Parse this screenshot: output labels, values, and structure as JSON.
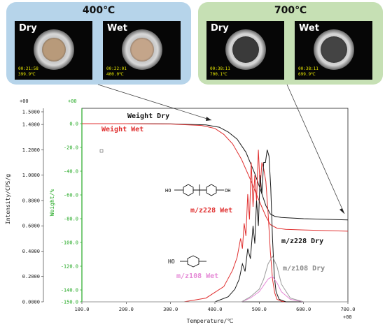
{
  "panels": [
    {
      "title": "400℃",
      "photos": [
        {
          "label": "Dry",
          "time": "00:21:58",
          "temp": "399.9℃",
          "sample_color": "#b89a7a"
        },
        {
          "label": "Wet",
          "time": "00:22:01",
          "temp": "400.0℃",
          "sample_color": "#c4a58a"
        }
      ],
      "bg": "#b6d4ea"
    },
    {
      "title": "700℃",
      "photos": [
        {
          "label": "Dry",
          "time": "00:38:11",
          "temp": "700.1℃",
          "sample_color": "#3a3a3a"
        },
        {
          "label": "Wet",
          "time": "00:38:11",
          "temp": "699.9℃",
          "sample_color": "#444444"
        }
      ],
      "bg": "#c6e0b4"
    }
  ],
  "chart_data": {
    "type": "line",
    "xlabel": "Temperature/℃",
    "ylabel_left": "Intensity/CPS/g",
    "ylabel_right": "Weight/%",
    "x_exponent": "+00",
    "yleft_exponent": "+00",
    "yright_exponent": "+00",
    "xlim": [
      100,
      700
    ],
    "yleft_lim": [
      0,
      1.5
    ],
    "yright_lim": [
      -150,
      10
    ],
    "x_ticks": [
      "100.0",
      "200.0",
      "300.0",
      "400.0",
      "500.0",
      "600.0",
      "700.0"
    ],
    "yleft_ticks": [
      "0.0000",
      "0.2000",
      "0.4000",
      "0.6000",
      "0.8000",
      "1.0000",
      "1.2000",
      "1.4000",
      "1.5000"
    ],
    "yright_ticks": [
      "0.0",
      "-20.0",
      "-40.0",
      "-60.0",
      "-80.0",
      "-100.0",
      "-120.0",
      "-140.0",
      "-150.0"
    ],
    "series": [
      {
        "name": "Weight Dry",
        "axis": "right",
        "color": "#1a1a1a",
        "x": [
          100,
          200,
          300,
          380,
          410,
          430,
          450,
          470,
          490,
          505,
          515,
          525,
          535,
          550,
          600,
          650,
          700
        ],
        "y": [
          0,
          0,
          -0.2,
          -1,
          -3,
          -7,
          -13,
          -24,
          -42,
          -58,
          -69,
          -76,
          -78,
          -79,
          -80,
          -80.5,
          -81
        ]
      },
      {
        "name": "Weight Wet",
        "axis": "right",
        "color": "#e03030",
        "x": [
          100,
          200,
          300,
          370,
          400,
          420,
          440,
          460,
          480,
          500,
          515,
          525,
          540,
          560,
          600,
          650,
          700
        ],
        "y": [
          0,
          0,
          -0.3,
          -1.5,
          -4,
          -9,
          -17,
          -30,
          -47,
          -65,
          -78,
          -85,
          -88,
          -89,
          -89.5,
          -90,
          -90.5
        ]
      },
      {
        "name": "m/z228 Wet",
        "axis": "left",
        "color": "#e03030",
        "x": [
          100,
          330,
          380,
          420,
          440,
          450,
          458,
          462,
          466,
          470,
          474,
          478,
          482,
          486,
          490,
          494,
          498,
          502,
          506,
          510,
          515,
          520,
          525,
          530,
          535,
          540,
          550,
          560,
          600,
          700
        ],
        "y": [
          0,
          0,
          0.03,
          0.12,
          0.25,
          0.35,
          0.5,
          0.42,
          0.62,
          0.52,
          0.85,
          0.65,
          1.1,
          0.75,
          1.0,
          0.8,
          1.2,
          0.9,
          1.1,
          1.05,
          0.95,
          0.7,
          0.4,
          0.18,
          0.07,
          0.02,
          0.005,
          0,
          0,
          0
        ]
      },
      {
        "name": "m/z228 Dry",
        "axis": "left",
        "color": "#1a1a1a",
        "x": [
          100,
          400,
          430,
          445,
          455,
          462,
          468,
          474,
          480,
          486,
          490,
          494,
          498,
          502,
          506,
          510,
          514,
          518,
          522,
          526,
          530,
          534,
          538,
          545,
          560,
          600,
          700
        ],
        "y": [
          0,
          0,
          0.04,
          0.1,
          0.18,
          0.3,
          0.24,
          0.42,
          0.34,
          0.6,
          0.46,
          0.8,
          0.6,
          1.0,
          0.85,
          1.1,
          1.1,
          1.2,
          1.15,
          0.9,
          0.5,
          0.2,
          0.08,
          0.02,
          0,
          0,
          0
        ]
      },
      {
        "name": "m/z108 Wet",
        "axis": "left",
        "color": "#e58ad6",
        "x": [
          100,
          460,
          480,
          500,
          510,
          520,
          530,
          540,
          550,
          570,
          600,
          700
        ],
        "y": [
          0,
          0,
          0.03,
          0.08,
          0.13,
          0.18,
          0.2,
          0.15,
          0.08,
          0.02,
          0,
          0
        ]
      },
      {
        "name": "m/z108 Dry",
        "axis": "left",
        "color": "#9a9a9a",
        "x": [
          100,
          460,
          480,
          500,
          510,
          520,
          530,
          540,
          550,
          570,
          600,
          700
        ],
        "y": [
          0,
          0,
          0.04,
          0.1,
          0.18,
          0.3,
          0.36,
          0.28,
          0.14,
          0.03,
          0,
          0
        ]
      }
    ],
    "annotations": {
      "weight_dry": "Weight Dry",
      "weight_wet": "Weight Wet",
      "mz228_wet": "m/z228 Wet",
      "mz228_dry": "m/z228 Dry",
      "mz108_dry": "m/z108 Dry",
      "mz108_wet": "m/z108 Wet",
      "ho_top": "HO",
      "oh_top": "OH",
      "ho_bottom": "HO"
    }
  }
}
